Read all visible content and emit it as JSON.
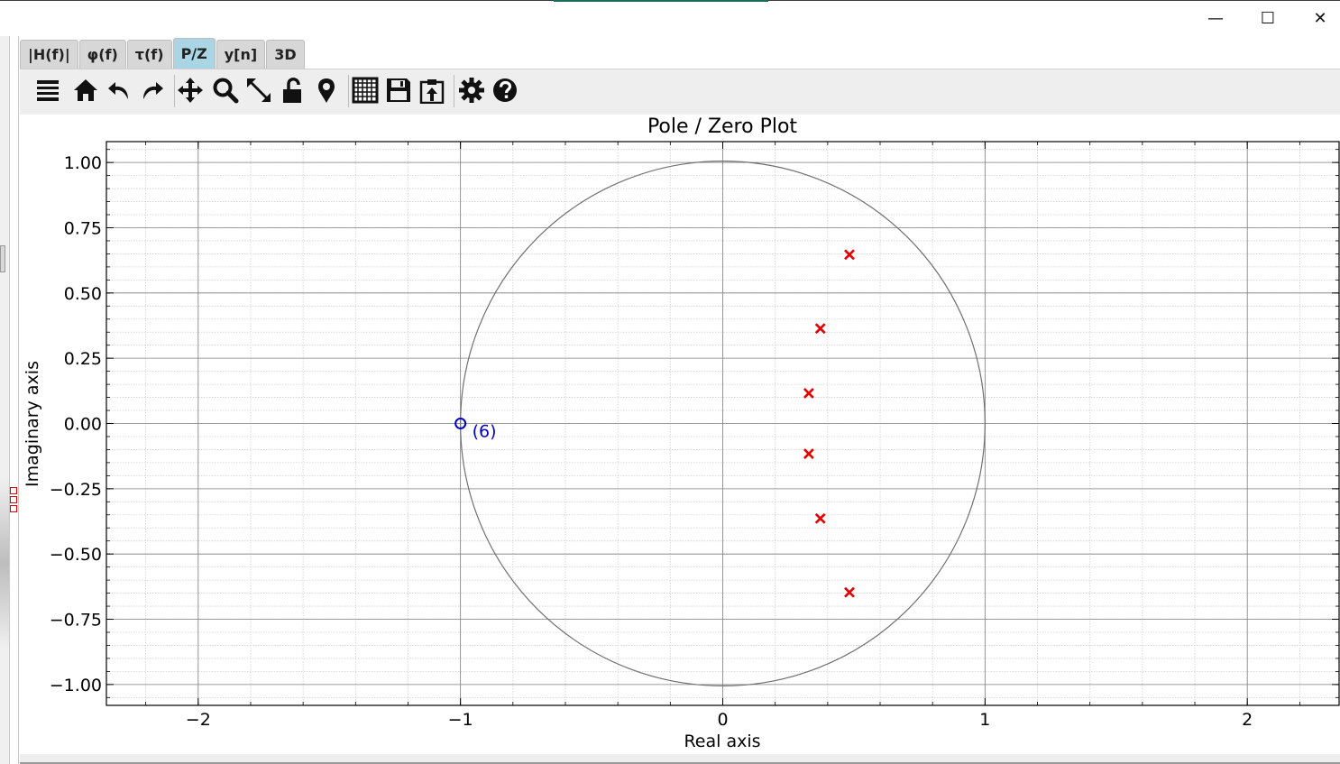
{
  "window": {
    "minimize_glyph": "—",
    "maximize_glyph": "☐",
    "close_glyph": "✕"
  },
  "tabs": [
    {
      "label": "|H(f)|",
      "active": false
    },
    {
      "label": "φ(f)",
      "active": false
    },
    {
      "label": "τ(f)",
      "active": false
    },
    {
      "label": "P/Z",
      "active": true
    },
    {
      "label": "y[n]",
      "active": false
    },
    {
      "label": "3D",
      "active": false
    }
  ],
  "toolbar": {
    "icons": [
      "menu-icon",
      "home-icon",
      "undo-icon",
      "redo-icon",
      "pan-icon",
      "zoom-icon",
      "autoscale-icon",
      "lock-icon",
      "marker-icon",
      "grid-icon",
      "save-icon",
      "export-icon",
      "settings-icon",
      "help-icon"
    ]
  },
  "colors": {
    "pole": "#e60000",
    "zero": "#0000cc",
    "unit_circle": "#707070",
    "active_tab": "#a9d5e4"
  },
  "chart_data": {
    "type": "scatter",
    "title": "Pole / Zero Plot",
    "xlabel": "Real axis",
    "ylabel": "Imaginary axis",
    "xlim": [
      -2.35,
      2.35
    ],
    "ylim": [
      -1.08,
      1.08
    ],
    "xticks": [
      -2,
      -1,
      0,
      1,
      2
    ],
    "xtick_labels": [
      "−2",
      "−1",
      "0",
      "1",
      "2"
    ],
    "yticks": [
      1.0,
      0.75,
      0.5,
      0.25,
      0.0,
      -0.25,
      -0.5,
      -0.75,
      -1.0
    ],
    "ytick_labels": [
      "1.00",
      "0.75",
      "0.50",
      "0.25",
      "0.00",
      "−0.25",
      "−0.50",
      "−0.75",
      "−1.00"
    ],
    "grid": true,
    "minor_grid": true,
    "unit_circle": true,
    "poles": [
      {
        "re": 0.483,
        "im": 0.647
      },
      {
        "re": 0.372,
        "im": 0.364
      },
      {
        "re": 0.328,
        "im": 0.116
      },
      {
        "re": 0.328,
        "im": -0.116
      },
      {
        "re": 0.372,
        "im": -0.364
      },
      {
        "re": 0.483,
        "im": -0.647
      }
    ],
    "zeros": [
      {
        "re": -1.0,
        "im": 0.0,
        "multiplicity_label": "(6)"
      }
    ]
  }
}
